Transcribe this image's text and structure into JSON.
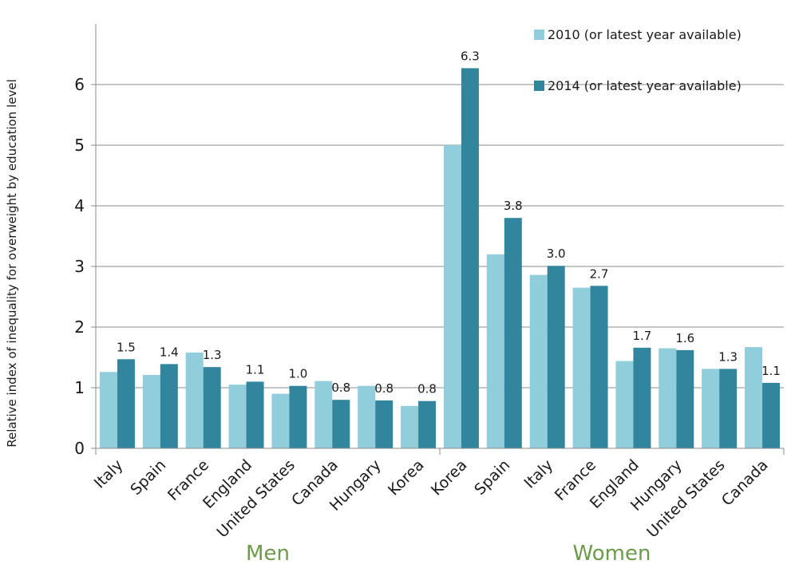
{
  "chart_data": {
    "type": "bar",
    "ylabel": "Relative index of inequality for overweight by education level",
    "ylim": [
      0,
      7
    ],
    "yticks": [
      0,
      1,
      2,
      3,
      4,
      5,
      6
    ],
    "grid": true,
    "legend_position": "top-right",
    "groups": [
      {
        "label": "Men",
        "start": 0,
        "count": 8
      },
      {
        "label": "Women",
        "start": 8,
        "count": 8
      }
    ],
    "categories": [
      "Italy",
      "Spain",
      "France",
      "England",
      "United States",
      "Canada",
      "Hungary",
      "Korea",
      "Korea",
      "Spain",
      "Italy",
      "France",
      "England",
      "Hungary",
      "United States",
      "Canada"
    ],
    "series": [
      {
        "name": "2010 (or latest year available)",
        "color": "#92cddc",
        "values": [
          1.26,
          1.21,
          1.58,
          1.05,
          0.9,
          1.11,
          1.03,
          0.7,
          5.0,
          3.2,
          2.86,
          2.65,
          1.44,
          1.65,
          1.31,
          1.67
        ]
      },
      {
        "name": "2014 (or latest year available)",
        "color": "#31859c",
        "values": [
          1.47,
          1.39,
          1.34,
          1.1,
          1.03,
          0.8,
          0.79,
          0.78,
          6.27,
          3.8,
          3.01,
          2.68,
          1.66,
          1.62,
          1.31,
          1.08
        ]
      }
    ],
    "data_labels": [
      "1.5",
      "1.4",
      "1.3",
      "1.1",
      "1.0",
      "0.8",
      "0.8",
      "0.8",
      "6.3",
      "3.8",
      "3.0",
      "2.7",
      "1.7",
      "1.6",
      "1.3",
      "1.1"
    ]
  }
}
